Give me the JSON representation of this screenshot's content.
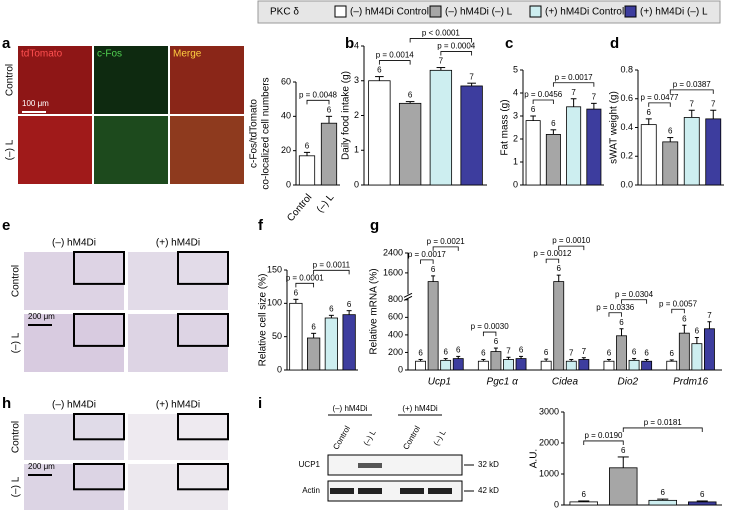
{
  "panel_letters": [
    "a",
    "b",
    "c",
    "d",
    "e",
    "f",
    "g",
    "h",
    "i"
  ],
  "legend": {
    "title": "PKC δ",
    "items": [
      {
        "name": "(–) hM4Di Control",
        "color": "#ffffff"
      },
      {
        "name": "(–) hM4Di (–) L",
        "color": "#a6a6a6"
      },
      {
        "name": "(+) hM4Di Control",
        "color": "#cdeef0"
      },
      {
        "name": "(+) hM4Di (–) L",
        "color": "#3d3d9e"
      }
    ]
  },
  "panel_a_images": {
    "columns": [
      "tdTomato",
      "c-Fos",
      "Merge"
    ],
    "rows": [
      "Control",
      "(–) L"
    ],
    "scale_bar": "100 μm"
  },
  "panel_e_images": {
    "columns": [
      "(–) hM4Di",
      "(+) hM4Di"
    ],
    "rows": [
      "Control",
      "(–) L"
    ],
    "scale_bar": "200 μm"
  },
  "panel_h_images": {
    "columns": [
      "(–) hM4Di",
      "(+) hM4Di"
    ],
    "rows": [
      "Control",
      "(–) L"
    ],
    "scale_bar": "200 μm"
  },
  "panel_i_blot": {
    "groups": [
      "(–) hM4Di",
      "(+) hM4Di"
    ],
    "lanes": [
      "Control",
      "(–) L",
      "Control",
      "(–) L"
    ],
    "bands": [
      "UCP1",
      "Actin"
    ],
    "sizes": [
      "32 kD",
      "42 kD"
    ]
  },
  "chart_data": [
    {
      "type": "bar",
      "ylabel": [
        "c-Fos/tdTomato",
        "co-localized cell numbers"
      ],
      "categories": [
        "Control",
        "(–) L"
      ],
      "values": [
        17,
        36
      ],
      "errors": [
        2,
        4
      ],
      "n": [
        6,
        6
      ],
      "colors": [
        "#ffffff",
        "#a6a6a6"
      ],
      "ylim": [
        0,
        60
      ],
      "yticks": [
        0,
        20,
        40,
        60
      ],
      "comparisons": [
        {
          "groups": [
            0,
            1
          ],
          "label": "p = 0.0048"
        }
      ]
    },
    {
      "type": "bar",
      "ylabel": "Daily food intake (g)",
      "values": [
        3.0,
        2.35,
        3.3,
        2.85
      ],
      "errors": [
        0.12,
        0.05,
        0.08,
        0.08
      ],
      "n": [
        6,
        6,
        7,
        7
      ],
      "colors": [
        "#ffffff",
        "#a6a6a6",
        "#cdeef0",
        "#3d3d9e"
      ],
      "ylim": [
        0,
        4
      ],
      "yticks": [
        0,
        1,
        2,
        3,
        4
      ],
      "comparisons": [
        {
          "groups": [
            0,
            1
          ],
          "label": "p = 0.0014"
        },
        {
          "groups": [
            2,
            3
          ],
          "label": "p = 0.0004"
        },
        {
          "groups": [
            1,
            3
          ],
          "label": "p < 0.0001"
        }
      ]
    },
    {
      "type": "bar",
      "ylabel": "Fat mass (g)",
      "values": [
        2.8,
        2.2,
        3.4,
        3.3
      ],
      "errors": [
        0.2,
        0.2,
        0.35,
        0.25
      ],
      "n": [
        6,
        6,
        7,
        7
      ],
      "colors": [
        "#ffffff",
        "#a6a6a6",
        "#cdeef0",
        "#3d3d9e"
      ],
      "ylim": [
        0,
        5
      ],
      "yticks": [
        0,
        1,
        2,
        3,
        4,
        5
      ],
      "comparisons": [
        {
          "groups": [
            0,
            1
          ],
          "label": "p = 0.0456"
        },
        {
          "groups": [
            1,
            3
          ],
          "label": "p = 0.0017"
        }
      ]
    },
    {
      "type": "bar",
      "ylabel": "sWAT weight (g)",
      "values": [
        0.42,
        0.3,
        0.47,
        0.46
      ],
      "errors": [
        0.04,
        0.03,
        0.05,
        0.06
      ],
      "n": [
        6,
        6,
        7,
        7
      ],
      "colors": [
        "#ffffff",
        "#a6a6a6",
        "#cdeef0",
        "#3d3d9e"
      ],
      "ylim": [
        0,
        0.8
      ],
      "yticks": [
        {
          "value": 0,
          "label": "0.0"
        },
        0.2,
        0.4,
        0.6,
        0.8
      ],
      "comparisons": [
        {
          "groups": [
            0,
            1
          ],
          "label": "p = 0.0477"
        },
        {
          "groups": [
            1,
            3
          ],
          "label": "p = 0.0387"
        }
      ]
    },
    {
      "type": "bar",
      "ylabel": "Relative cell size (%)",
      "values": [
        100,
        48,
        78,
        83
      ],
      "errors": [
        6,
        7,
        4,
        6
      ],
      "n": [
        6,
        6,
        6,
        6
      ],
      "colors": [
        "#ffffff",
        "#a6a6a6",
        "#cdeef0",
        "#3d3d9e"
      ],
      "ylim": [
        0,
        150
      ],
      "yticks": [
        0,
        50,
        100,
        150
      ],
      "comparisons": [
        {
          "groups": [
            0,
            1
          ],
          "label": "p = 0.0001"
        },
        {
          "groups": [
            1,
            3
          ],
          "label": "p = 0.0011"
        }
      ]
    },
    {
      "type": "grouped-bar",
      "ylabel": "Relative mRNA (%)",
      "categories": [
        "Ucp1",
        "Pgc1 α",
        "Cidea",
        "Dio2",
        "Prdm16"
      ],
      "series": [
        {
          "color": "#ffffff",
          "values": [
            100,
            100,
            100,
            100,
            100
          ],
          "errors": [
            20,
            20,
            25,
            20,
            15
          ],
          "n": [
            6,
            6,
            6,
            6,
            6
          ]
        },
        {
          "color": "#a6a6a6",
          "values": [
            1250,
            210,
            1250,
            390,
            420
          ],
          "errors": [
            230,
            40,
            260,
            80,
            90
          ],
          "n": [
            6,
            6,
            6,
            6,
            6
          ]
        },
        {
          "color": "#cdeef0",
          "values": [
            110,
            120,
            100,
            110,
            300
          ],
          "errors": [
            20,
            25,
            20,
            20,
            70
          ],
          "n": [
            6,
            7,
            7,
            6,
            6
          ]
        },
        {
          "color": "#3d3d9e",
          "values": [
            130,
            130,
            120,
            100,
            470
          ],
          "errors": [
            25,
            25,
            20,
            20,
            80
          ],
          "n": [
            6,
            6,
            7,
            6,
            7
          ]
        }
      ],
      "ylim": [
        0,
        2400
      ],
      "yticks": [
        0,
        200,
        400,
        600,
        800,
        1600,
        2400
      ],
      "y_break": 800,
      "comparisons": [
        {
          "category": 0,
          "groups": [
            0,
            1
          ],
          "label": "p = 0.0017"
        },
        {
          "category": 0,
          "groups": [
            1,
            3
          ],
          "label": "p = 0.0021"
        },
        {
          "category": 1,
          "groups": [
            0,
            1
          ],
          "label": "p = 0.0030"
        },
        {
          "category": 2,
          "groups": [
            0,
            1
          ],
          "label": "p = 0.0012"
        },
        {
          "category": 2,
          "groups": [
            1,
            3
          ],
          "label": "p = 0.0010"
        },
        {
          "category": 3,
          "groups": [
            0,
            1
          ],
          "label": "p = 0.0336"
        },
        {
          "category": 3,
          "groups": [
            1,
            3
          ],
          "label": "p = 0.0304"
        },
        {
          "category": 4,
          "groups": [
            0,
            1
          ],
          "label": "p = 0.0057"
        }
      ]
    },
    {
      "type": "bar",
      "ylabel": "A.U.",
      "values": [
        100,
        1200,
        150,
        100
      ],
      "errors": [
        30,
        350,
        40,
        30
      ],
      "n": [
        6,
        6,
        6,
        6
      ],
      "colors": [
        "#ffffff",
        "#a6a6a6",
        "#cdeef0",
        "#3d3d9e"
      ],
      "ylim": [
        0,
        3000
      ],
      "yticks": [
        0,
        1000,
        2000,
        3000
      ],
      "comparisons": [
        {
          "groups": [
            0,
            1
          ],
          "label": "p = 0.0190"
        },
        {
          "groups": [
            1,
            3
          ],
          "label": "p = 0.0181"
        }
      ]
    }
  ]
}
